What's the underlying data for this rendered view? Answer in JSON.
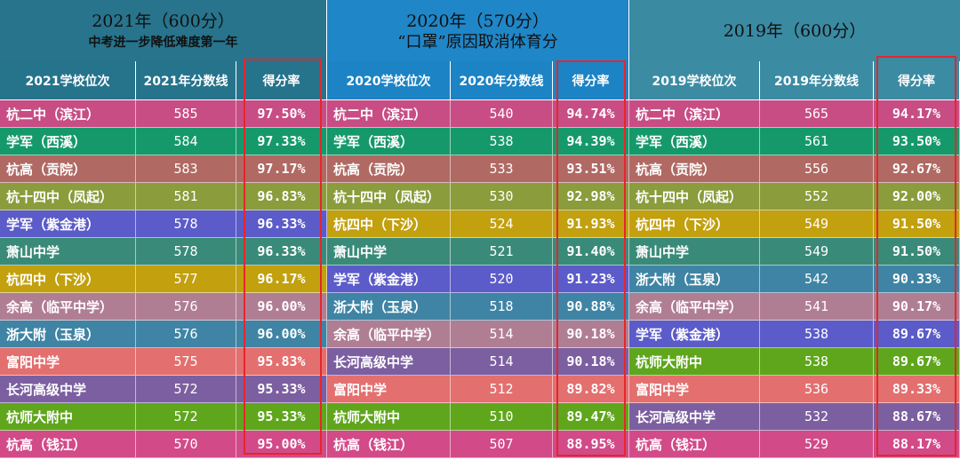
{
  "colors": {
    "title_2021": "#27748c",
    "title_2020": "#1f86c8",
    "title_2019": "#3a8aa2",
    "header_2021": "#26738c",
    "header_2020": "#1c83c5",
    "header_2019": "#3b8ba3",
    "highlight": "#e5262c"
  },
  "panels": [
    {
      "year": "2021",
      "title_line1": "2021年（600分）",
      "title_line2": "中考进一步降低难度第一年",
      "headers": [
        "2021学校位次",
        "2021年分数线",
        "得分率"
      ],
      "rows": [
        {
          "school": "杭二中（滨江）",
          "score": "585",
          "rate": "97.50%",
          "color": "#c84d84"
        },
        {
          "school": "学军（西溪）",
          "score": "584",
          "rate": "97.33%",
          "color": "#15996b"
        },
        {
          "school": "杭高（贡院）",
          "score": "583",
          "rate": "97.17%",
          "color": "#b06963"
        },
        {
          "school": "杭十四中（凤起）",
          "score": "581",
          "rate": "96.83%",
          "color": "#8a9c3c"
        },
        {
          "school": "学军（紫金港）",
          "score": "578",
          "rate": "96.33%",
          "color": "#5b5bc9"
        },
        {
          "school": "萧山中学",
          "score": "578",
          "rate": "96.33%",
          "color": "#3a8a79"
        },
        {
          "school": "杭四中（下沙）",
          "score": "577",
          "rate": "96.17%",
          "color": "#c2a00e"
        },
        {
          "school": "余高（临平中学）",
          "score": "576",
          "rate": "96.00%",
          "color": "#b07e93"
        },
        {
          "school": "浙大附（玉泉）",
          "score": "576",
          "rate": "96.00%",
          "color": "#3f84a4"
        },
        {
          "school": "富阳中学",
          "score": "575",
          "rate": "95.83%",
          "color": "#e36f6f"
        },
        {
          "school": "长河高级中学",
          "score": "572",
          "rate": "95.33%",
          "color": "#7c5fa0"
        },
        {
          "school": "杭师大附中",
          "score": "572",
          "rate": "95.33%",
          "color": "#5fa61c"
        },
        {
          "school": "杭高（钱江）",
          "score": "570",
          "rate": "95.00%",
          "color": "#d24a88"
        }
      ]
    },
    {
      "year": "2020",
      "title_line1": "2020年（570分）",
      "title_line2": "“口罩”原因取消体育分",
      "headers": [
        "2020学校位次",
        "2020年分数线",
        "得分率"
      ],
      "rows": [
        {
          "school": "杭二中（滨江）",
          "score": "540",
          "rate": "94.74%",
          "color": "#c84d84"
        },
        {
          "school": "学军（西溪）",
          "score": "538",
          "rate": "94.39%",
          "color": "#15996b"
        },
        {
          "school": "杭高（贡院）",
          "score": "533",
          "rate": "93.51%",
          "color": "#b06963"
        },
        {
          "school": "杭十四中（凤起）",
          "score": "530",
          "rate": "92.98%",
          "color": "#8a9c3c"
        },
        {
          "school": "杭四中（下沙）",
          "score": "524",
          "rate": "91.93%",
          "color": "#c2a00e"
        },
        {
          "school": "萧山中学",
          "score": "521",
          "rate": "91.40%",
          "color": "#3a8a79"
        },
        {
          "school": "学军（紫金港）",
          "score": "520",
          "rate": "91.23%",
          "color": "#5b5bc9"
        },
        {
          "school": "浙大附（玉泉）",
          "score": "518",
          "rate": "90.88%",
          "color": "#3f84a4"
        },
        {
          "school": "余高（临平中学）",
          "score": "514",
          "rate": "90.18%",
          "color": "#b07e93"
        },
        {
          "school": "长河高级中学",
          "score": "514",
          "rate": "90.18%",
          "color": "#7c5fa0"
        },
        {
          "school": "富阳中学",
          "score": "512",
          "rate": "89.82%",
          "color": "#e36f6f"
        },
        {
          "school": "杭师大附中",
          "score": "510",
          "rate": "89.47%",
          "color": "#5fa61c"
        },
        {
          "school": "杭高（钱江）",
          "score": "507",
          "rate": "88.95%",
          "color": "#d24a88"
        }
      ]
    },
    {
      "year": "2019",
      "title_line1": "2019年（600分）",
      "title_line2": "",
      "headers": [
        "2019学校位次",
        "2019年分数线",
        "得分率"
      ],
      "rows": [
        {
          "school": "杭二中（滨江）",
          "score": "565",
          "rate": "94.17%",
          "color": "#c84d84"
        },
        {
          "school": "学军（西溪）",
          "score": "561",
          "rate": "93.50%",
          "color": "#15996b"
        },
        {
          "school": "杭高（贡院）",
          "score": "556",
          "rate": "92.67%",
          "color": "#b06963"
        },
        {
          "school": "杭十四中（凤起）",
          "score": "552",
          "rate": "92.00%",
          "color": "#8a9c3c"
        },
        {
          "school": "杭四中（下沙）",
          "score": "549",
          "rate": "91.50%",
          "color": "#c2a00e"
        },
        {
          "school": "萧山中学",
          "score": "549",
          "rate": "91.50%",
          "color": "#3a8a79"
        },
        {
          "school": "浙大附（玉泉）",
          "score": "542",
          "rate": "90.33%",
          "color": "#3f84a4"
        },
        {
          "school": "余高（临平中学）",
          "score": "541",
          "rate": "90.17%",
          "color": "#b07e93"
        },
        {
          "school": "学军（紫金港）",
          "score": "538",
          "rate": "89.67%",
          "color": "#5b5bc9"
        },
        {
          "school": "杭师大附中",
          "score": "538",
          "rate": "89.67%",
          "color": "#5fa61c"
        },
        {
          "school": "富阳中学",
          "score": "536",
          "rate": "89.33%",
          "color": "#e36f6f"
        },
        {
          "school": "长河高级中学",
          "score": "532",
          "rate": "88.67%",
          "color": "#7c5fa0"
        },
        {
          "school": "杭高（钱江）",
          "score": "529",
          "rate": "88.17%",
          "color": "#d24a88"
        }
      ]
    }
  ]
}
